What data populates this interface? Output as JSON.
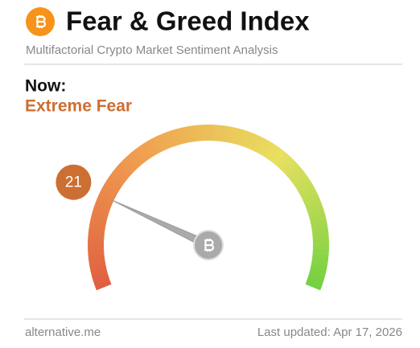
{
  "chart_data": {
    "type": "gauge",
    "title": "Fear & Greed Index",
    "subtitle": "Multifactorial Crypto Market Sentiment Analysis",
    "label": "Now:",
    "classification": "Extreme Fear",
    "value": 21,
    "ylim": [
      0,
      100
    ],
    "color": "#cc6f33",
    "source": "alternative.me",
    "updated": "Last updated: Apr 17, 2026"
  }
}
